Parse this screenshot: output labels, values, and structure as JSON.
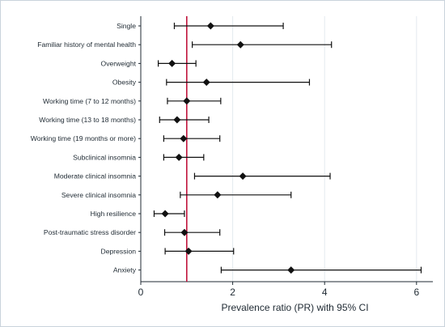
{
  "chart_data": {
    "type": "forest",
    "xlabel": "Prevalence ratio (PR) with 95% CI",
    "xlim": [
      0,
      6.2
    ],
    "xticks": [
      0,
      2,
      4,
      6
    ],
    "reference_line": 1,
    "reference_color": "#c0143c",
    "grid": "vertical",
    "rows": [
      {
        "label": "Single",
        "pr": 1.52,
        "lo": 0.73,
        "hi": 3.1
      },
      {
        "label": "Familiar history of mental health",
        "pr": 2.17,
        "lo": 1.12,
        "hi": 4.15
      },
      {
        "label": "Overweight",
        "pr": 0.68,
        "lo": 0.38,
        "hi": 1.2
      },
      {
        "label": "Obesity",
        "pr": 1.43,
        "lo": 0.56,
        "hi": 3.67
      },
      {
        "label": "Working time (7 to 12 months)",
        "pr": 1.0,
        "lo": 0.58,
        "hi": 1.74
      },
      {
        "label": "Working time (13 to 18 months)",
        "pr": 0.79,
        "lo": 0.41,
        "hi": 1.48
      },
      {
        "label": "Working time (19 months or more)",
        "pr": 0.93,
        "lo": 0.5,
        "hi": 1.72
      },
      {
        "label": "Subclinical insomnia",
        "pr": 0.83,
        "lo": 0.5,
        "hi": 1.37
      },
      {
        "label": "Moderate clinical insomnia",
        "pr": 2.22,
        "lo": 1.17,
        "hi": 4.12
      },
      {
        "label": "Severe clinical insomnia",
        "pr": 1.67,
        "lo": 0.86,
        "hi": 3.27
      },
      {
        "label": "High resilience",
        "pr": 0.53,
        "lo": 0.29,
        "hi": 0.95
      },
      {
        "label": "Post-traumatic stress disorder",
        "pr": 0.95,
        "lo": 0.52,
        "hi": 1.72
      },
      {
        "label": "Depression",
        "pr": 1.04,
        "lo": 0.53,
        "hi": 2.02
      },
      {
        "label": "Anxiety",
        "pr": 3.27,
        "lo": 1.75,
        "hi": 6.1
      }
    ]
  }
}
